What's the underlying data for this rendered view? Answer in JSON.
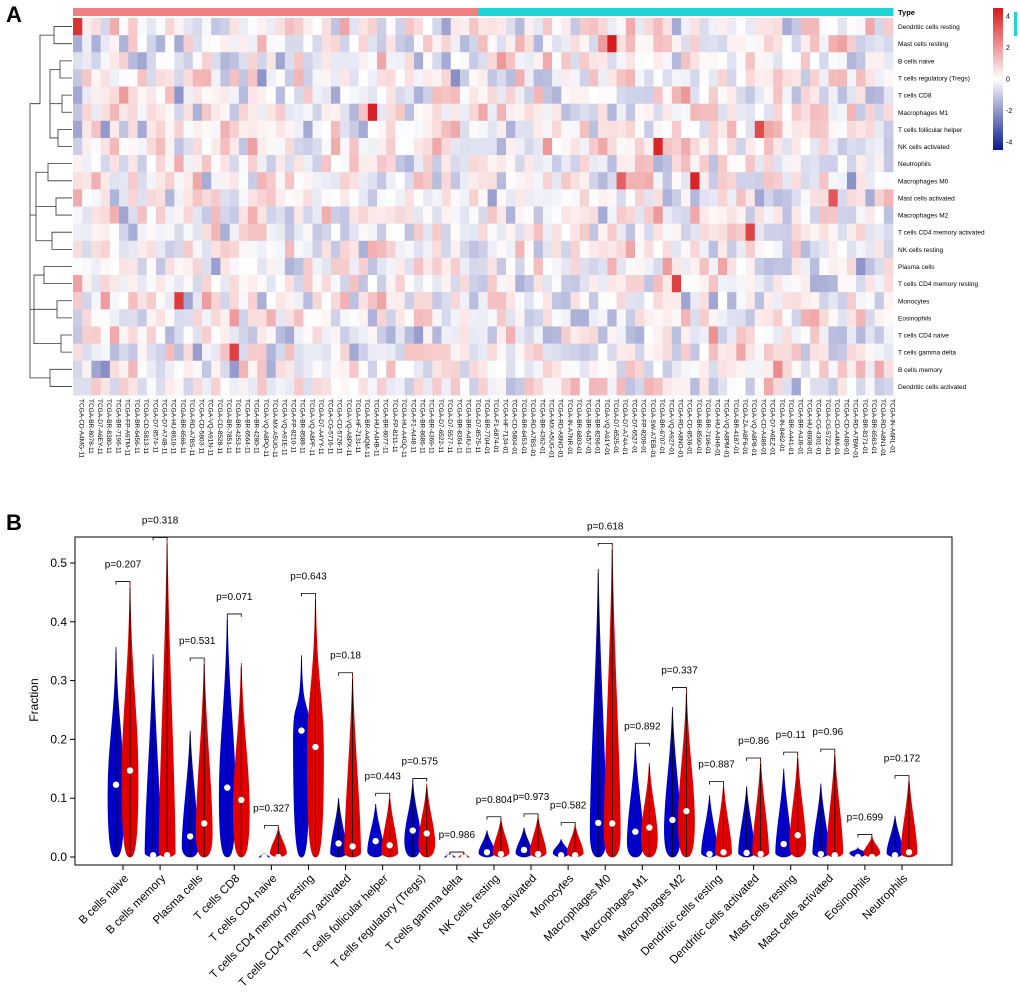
{
  "panel_a": {
    "label": "A",
    "legend_title": "Type",
    "color_scale": {
      "ticks": [
        4,
        2,
        0,
        -2,
        -4
      ],
      "high_color": "#d7191c",
      "mid_color": "#ffffff",
      "low_color": "#0c1a8c"
    },
    "type_colors": {
      "group1": "#f08080",
      "group2": "#1ed4d4"
    }
  },
  "panel_b": {
    "label": "B"
  },
  "chart_data": [
    {
      "type": "heatmap",
      "title": "",
      "rows": [
        "Dendritic cells resting",
        "Mast cells resting",
        "B cells naive",
        "T cells regulatory (Tregs)",
        "T cells CD8",
        "Macrophages M1",
        "T cells follicular helper",
        "NK cells activated",
        "Neutrophils",
        "Macrophages M0",
        "Mast cells activated",
        "Macrophages M2",
        "T cells CD4 memory activated",
        "NK cells resting",
        "Plasma cells",
        "T cells CD4 memory resting",
        "Monocytes",
        "Eosinophils",
        "T cells CD4 naive",
        "T cells gamma delta",
        "B cells memory",
        "Dendritic cells activated"
      ],
      "columns": [
        "TCGA-CD-A4MG-11",
        "TCGA-BR-8078-11",
        "TCGA-D7-A6EY-11",
        "TCGA-BR-8380-11",
        "TCGA-BR-7196-11",
        "TCGA-FP-A9TM-11",
        "TCGA-BR-6456-11",
        "TCGA-CD-5813-11",
        "TCGA-D7-8574-11",
        "TCGA-D7-A74B-11",
        "TCGA-HU-8610-11",
        "TCGA-BR-6566-11",
        "TCGA-RD-A7BS-11",
        "TCGA-CD-5803-11",
        "TCGA-VQ-A91N-11",
        "TCGA-CD-8528-11",
        "TCGA-BR-7851-11",
        "TCGA-BR-4253-11",
        "TCGA-BR-6564-11",
        "TCGA-BR-4280-11",
        "TCGA-VQ-A8PQ-11",
        "TCGA-MX-A5UG-11",
        "TCGA-VQ-A91E-11",
        "TCGA-FP-8210-11",
        "TCGA-BR-8588-11",
        "TCGA-VQ-A8PF-11",
        "TCGA-D7-A4YY-11",
        "TCGA-CG-5716-11",
        "TCGA-CD-5726-11",
        "TCGA-VQ-A8PX-11",
        "TCGA-HF-7131-11",
        "TCGA-BR-A4QM-11",
        "TCGA-HU-A4HB-11",
        "TCGA-BR-8077-11",
        "TCGA-FP-8211-11",
        "TCGA-HU-A4GQ-11",
        "TCGA-F1-A448-11",
        "TCGA-BR-8686-11",
        "TCGA-BR-4369-11",
        "TCGA-D7-6522-11",
        "TCGA-D7-5577-11",
        "TCGA-BR-8364-11",
        "TCGA-BR-A4IU-11",
        "TCGA-D7-8575-11",
        "TCGA-BR-7704-01",
        "TCGA-F1-6874-01",
        "TCGA-HF-7134-01",
        "TCGA-CD-5804-01",
        "TCGA-BR-6453-01",
        "TCGA-RD-A7BS-01",
        "TCGA-BR-4362-01",
        "TCGA-MX-A5UG-01",
        "TCGA-RD-A8NO-01",
        "TCGA-IN-A7NR-01",
        "TCGA-BR-6803-01",
        "TCGA-BR-6457-01",
        "TCGA-BR-8296-01",
        "TCGA-VQ-A91Y-01",
        "TCGA-D7-6525-01",
        "TCGA-D7-A74A-01",
        "TCGA-D7-6527-01",
        "TCGA-FP-8209-01",
        "TCGA-SW-A7EB-01",
        "TCGA-BR-6707-01",
        "TCGA-VQ-A927-01",
        "TCGA-RD-A8NO-01",
        "TCGA-CD-8536-01",
        "TCGA-BR-8590-01",
        "TCGA-BR-7196-01",
        "TCGA-HU-A4H6-01",
        "TCGA-VQ-A8PM-01",
        "TCGA-BR-4187-01",
        "TCGA-ZA-A8F6-01",
        "TCGA-VQ-A8P8-01",
        "TCGA-CD-A486-01",
        "TCGA-D7-A6EZ-01",
        "TCGA-IN-8462-01",
        "TCGA-BR-A441-01",
        "TCGA-BR-A4J6-01",
        "TCGA-HU-8608-01",
        "TCGA-CG-4301-01",
        "TCGA-CG-5722-01",
        "TCGA-CD-A4MI-01",
        "TCGA-CD-A489-01",
        "TCGA-RD-A7BW-01",
        "TCGA-BR-8371-01",
        "TCGA-BR-6563-01",
        "TCGA-RD-A8N1-01",
        "TCGA-IN-A6RL-01"
      ],
      "group_split_index": 44,
      "value_range": [
        -4.5,
        4.5
      ]
    },
    {
      "type": "violin",
      "title": "",
      "ylabel": "Fraction",
      "ylim": [
        0,
        0.55
      ],
      "yticks": [
        0.0,
        0.1,
        0.2,
        0.3,
        0.4,
        0.5
      ],
      "series_colors": {
        "group1": "#0000cc",
        "group2": "#e00000"
      },
      "categories": [
        "B cells naive",
        "B cells memory",
        "Plasma cells",
        "T cells CD8",
        "T cells CD4 naive",
        "T cells CD4 memory resting",
        "T cells CD4 memory activated",
        "T cells follicular helper",
        "T cells regulatory (Tregs)",
        "T cells gamma delta",
        "NK cells resting",
        "NK cells activated",
        "Monocytes",
        "Macrophages M0",
        "Macrophages M1",
        "Macrophages M2",
        "Dendritic cells resting",
        "Dendritic cells activated",
        "Mast cells resting",
        "Mast cells activated",
        "Eosinophils",
        "Neutrophils"
      ],
      "p_values": [
        "p=0.207",
        "p=0.318",
        "p=0.531",
        "p=0.071",
        "p=0.327",
        "p=0.643",
        "p=0.18",
        "p=0.443",
        "p=0.575",
        "p=0.986",
        "p=0.804",
        "p=0.973",
        "p=0.582",
        "p=0.618",
        "p=0.892",
        "p=0.337",
        "p=0.887",
        "p=0.86",
        "p=0.11",
        "p=0.96",
        "p=0.699",
        "p=0.172"
      ],
      "group1_max": [
        0.357,
        0.345,
        0.215,
        0.41,
        0.005,
        0.343,
        0.1,
        0.09,
        0.13,
        0.005,
        0.045,
        0.05,
        0.03,
        0.49,
        0.19,
        0.255,
        0.105,
        0.12,
        0.15,
        0.125,
        0.015,
        0.07
      ],
      "group2_max": [
        0.465,
        0.54,
        0.335,
        0.33,
        0.05,
        0.445,
        0.31,
        0.105,
        0.125,
        0.005,
        0.065,
        0.07,
        0.055,
        0.53,
        0.16,
        0.285,
        0.125,
        0.165,
        0.175,
        0.18,
        0.035,
        0.135
      ],
      "group1_median": [
        0.123,
        0.003,
        0.035,
        0.118,
        0.0,
        0.215,
        0.023,
        0.027,
        0.045,
        0.0,
        0.008,
        0.012,
        0.003,
        0.058,
        0.043,
        0.063,
        0.005,
        0.007,
        0.022,
        0.005,
        0.0,
        0.003
      ],
      "group2_median": [
        0.147,
        0.003,
        0.057,
        0.097,
        0.0,
        0.187,
        0.018,
        0.02,
        0.04,
        0.0,
        0.005,
        0.005,
        0.003,
        0.057,
        0.05,
        0.078,
        0.008,
        0.005,
        0.037,
        0.003,
        0.0,
        0.008
      ]
    }
  ]
}
